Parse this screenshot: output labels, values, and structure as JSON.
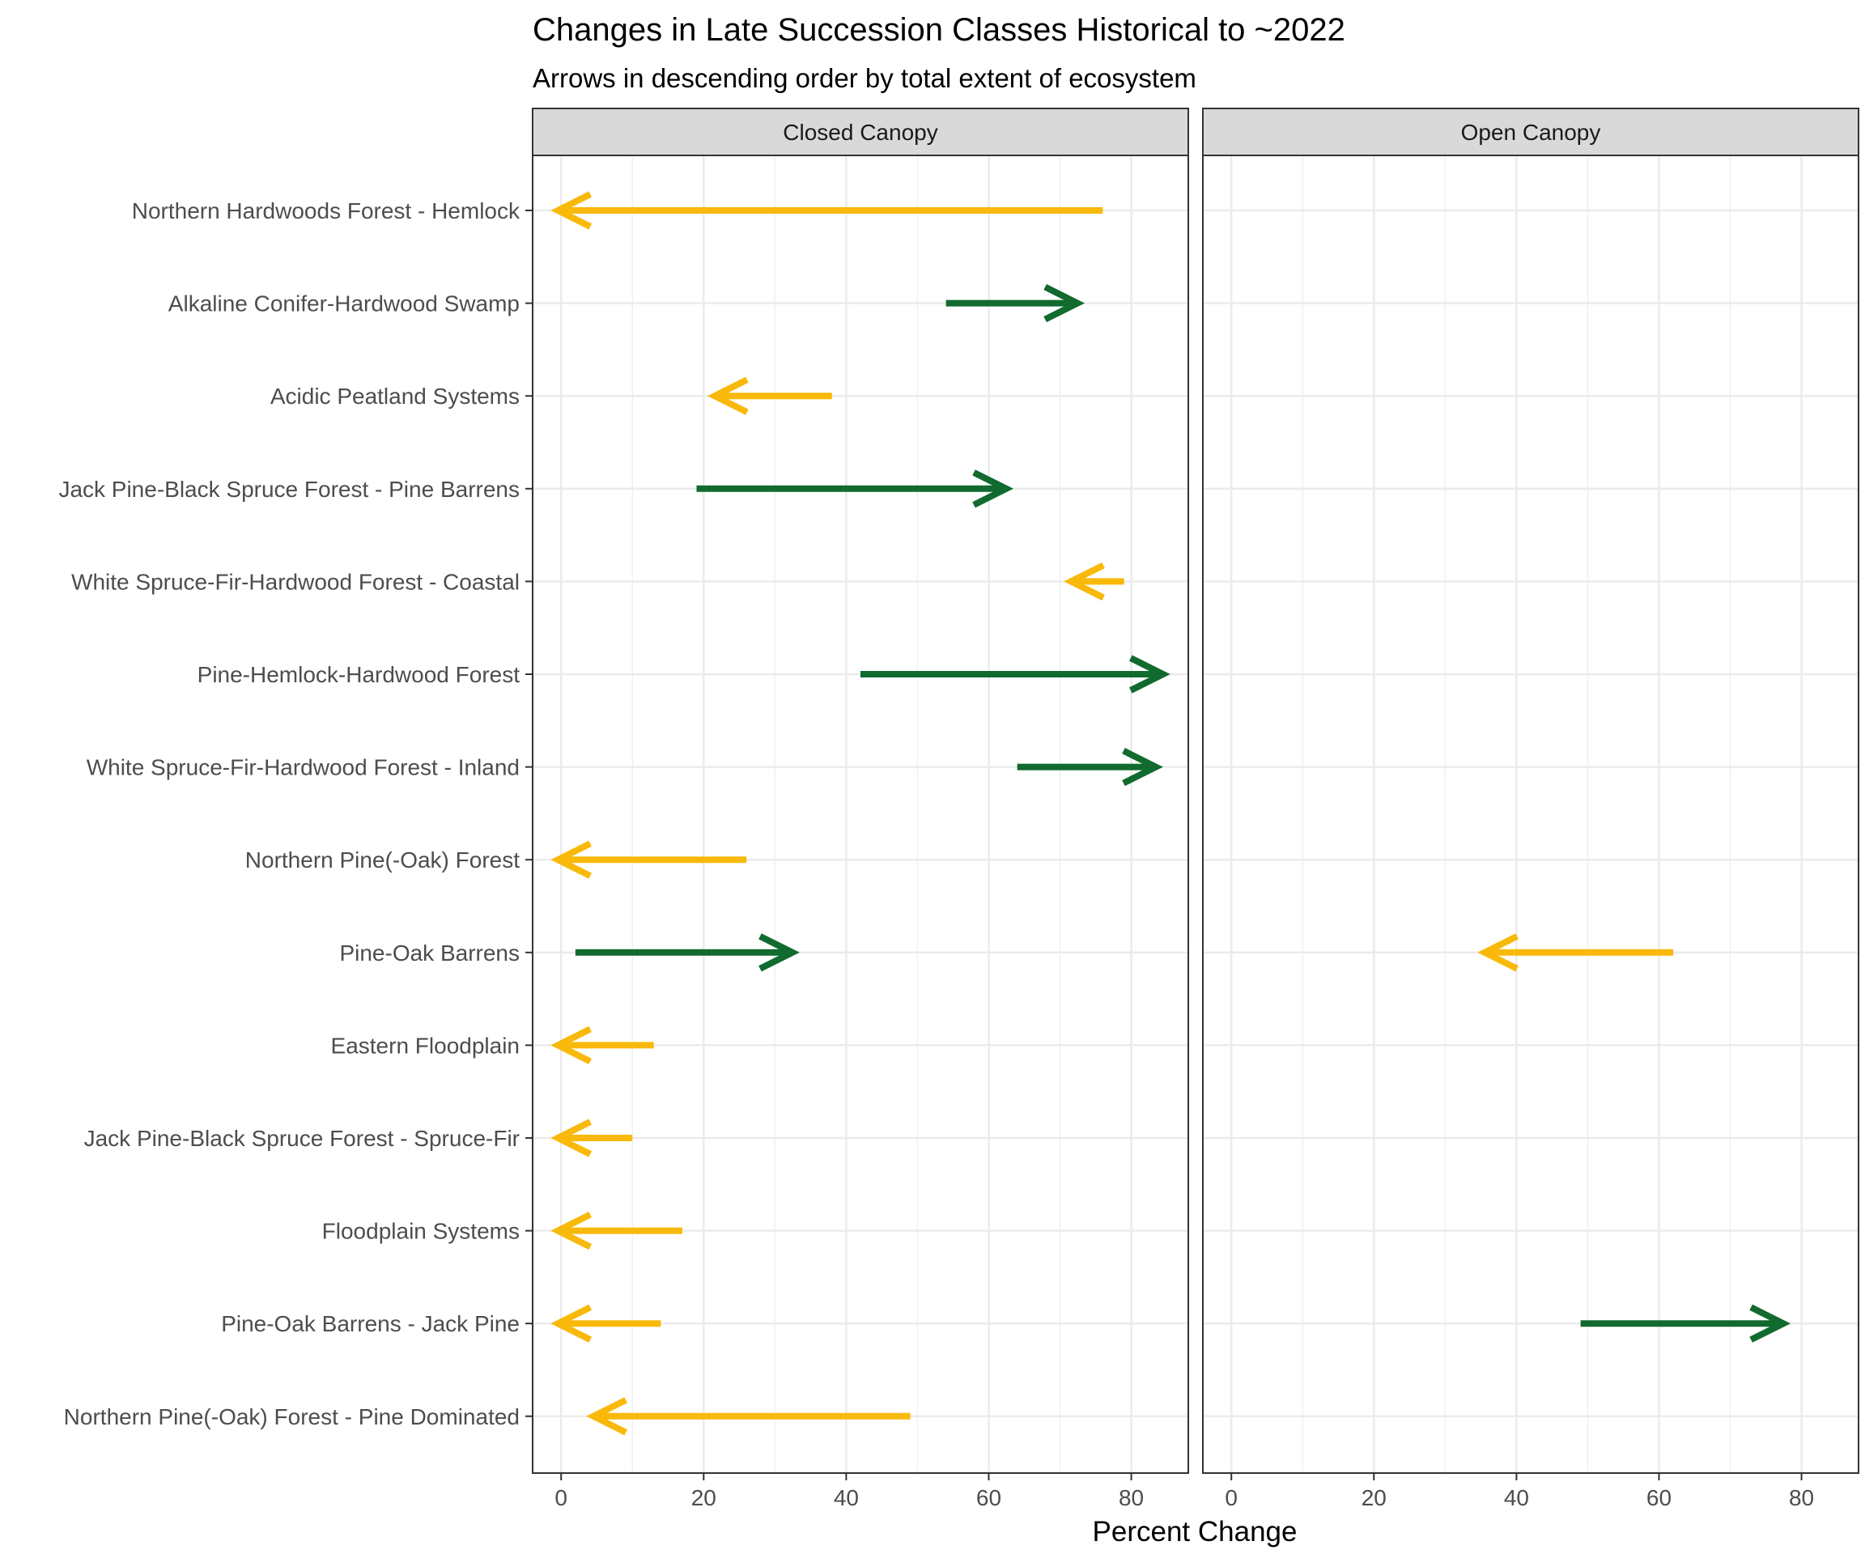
{
  "chart_data": {
    "type": "arrow",
    "title": "Changes in Late Succession Classes Historical to ~2022",
    "subtitle": "Arrows in descending order by total extent of ecosystem",
    "xlabel": "Percent Change",
    "ylabel": "",
    "xlim": [
      -4,
      88
    ],
    "x_ticks": [
      0,
      20,
      40,
      60,
      80
    ],
    "grid": true,
    "facets": [
      "Closed Canopy",
      "Open Canopy"
    ],
    "categories": [
      "Northern Hardwoods Forest - Hemlock",
      "Alkaline Conifer-Hardwood Swamp",
      "Acidic Peatland Systems",
      "Jack Pine-Black Spruce Forest - Pine Barrens",
      "White Spruce-Fir-Hardwood Forest - Coastal",
      "Pine-Hemlock-Hardwood Forest",
      "White Spruce-Fir-Hardwood Forest - Inland",
      "Northern Pine(-Oak) Forest",
      "Pine-Oak Barrens",
      "Eastern Floodplain",
      "Jack Pine-Black Spruce Forest - Spruce-Fir",
      "Floodplain Systems",
      "Pine-Oak Barrens - Jack Pine",
      "Northern Pine(-Oak) Forest - Pine Dominated"
    ],
    "colors": {
      "increase": "#116A2E",
      "decrease": "#F9B90A"
    },
    "arrows": [
      {
        "facet": "Closed Canopy",
        "category": "Northern Hardwoods Forest - Hemlock",
        "from": 76,
        "to": 0,
        "direction": "decrease"
      },
      {
        "facet": "Closed Canopy",
        "category": "Alkaline Conifer-Hardwood Swamp",
        "from": 54,
        "to": 72,
        "direction": "increase"
      },
      {
        "facet": "Closed Canopy",
        "category": "Acidic Peatland Systems",
        "from": 38,
        "to": 22,
        "direction": "decrease"
      },
      {
        "facet": "Closed Canopy",
        "category": "Jack Pine-Black Spruce Forest - Pine Barrens",
        "from": 19,
        "to": 62,
        "direction": "increase"
      },
      {
        "facet": "Closed Canopy",
        "category": "White Spruce-Fir-Hardwood Forest - Coastal",
        "from": 79,
        "to": 72,
        "direction": "decrease"
      },
      {
        "facet": "Closed Canopy",
        "category": "Pine-Hemlock-Hardwood Forest",
        "from": 42,
        "to": 84,
        "direction": "increase"
      },
      {
        "facet": "Closed Canopy",
        "category": "White Spruce-Fir-Hardwood Forest - Inland",
        "from": 64,
        "to": 83,
        "direction": "increase"
      },
      {
        "facet": "Closed Canopy",
        "category": "Northern Pine(-Oak) Forest",
        "from": 26,
        "to": 0,
        "direction": "decrease"
      },
      {
        "facet": "Closed Canopy",
        "category": "Pine-Oak Barrens",
        "from": 2,
        "to": 32,
        "direction": "increase"
      },
      {
        "facet": "Closed Canopy",
        "category": "Eastern Floodplain",
        "from": 13,
        "to": 0,
        "direction": "decrease"
      },
      {
        "facet": "Closed Canopy",
        "category": "Jack Pine-Black Spruce Forest - Spruce-Fir",
        "from": 10,
        "to": 0,
        "direction": "decrease"
      },
      {
        "facet": "Closed Canopy",
        "category": "Floodplain Systems",
        "from": 17,
        "to": 0,
        "direction": "decrease"
      },
      {
        "facet": "Closed Canopy",
        "category": "Pine-Oak Barrens - Jack Pine",
        "from": 14,
        "to": 0,
        "direction": "decrease"
      },
      {
        "facet": "Closed Canopy",
        "category": "Northern Pine(-Oak) Forest - Pine Dominated",
        "from": 49,
        "to": 5,
        "direction": "decrease"
      },
      {
        "facet": "Open Canopy",
        "category": "Pine-Oak Barrens",
        "from": 62,
        "to": 36,
        "direction": "decrease"
      },
      {
        "facet": "Open Canopy",
        "category": "Pine-Oak Barrens - Jack Pine",
        "from": 49,
        "to": 77,
        "direction": "increase"
      }
    ]
  }
}
